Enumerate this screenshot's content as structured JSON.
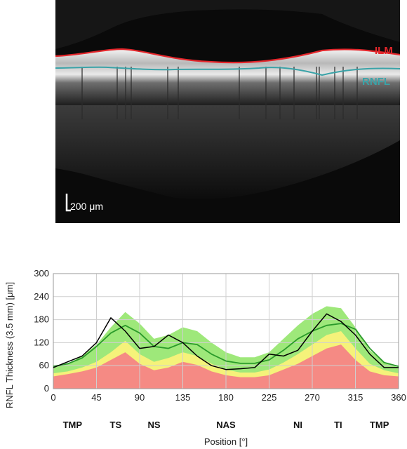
{
  "oct_image": {
    "labels": {
      "ilm": "ILM",
      "rnfl": "RNFL"
    },
    "scale_bar": "200 μm",
    "colors": {
      "ilm": "#e3262b",
      "rnfl": "#3aa3a8"
    }
  },
  "chart_data": {
    "type": "line",
    "xlabel": "Position [°]",
    "ylabel": "RNFL Thickness (3.5 mm) [μm]",
    "xlim": [
      0,
      360
    ],
    "ylim": [
      0,
      300
    ],
    "x_ticks": [
      "0",
      "45",
      "90",
      "135",
      "180",
      "225",
      "270",
      "315",
      "360"
    ],
    "y_ticks": [
      "0",
      "60",
      "120",
      "180",
      "240",
      "300"
    ],
    "sector_labels": [
      {
        "label": "TMP",
        "x": 20
      },
      {
        "label": "TS",
        "x": 65
      },
      {
        "label": "NS",
        "x": 105
      },
      {
        "label": "NAS",
        "x": 180
      },
      {
        "label": "NI",
        "x": 255
      },
      {
        "label": "TI",
        "x": 297
      },
      {
        "label": "TMP",
        "x": 340
      }
    ],
    "grid": true,
    "x": [
      0,
      15,
      30,
      45,
      60,
      75,
      90,
      105,
      120,
      135,
      150,
      165,
      180,
      195,
      210,
      225,
      240,
      255,
      270,
      285,
      300,
      315,
      330,
      345,
      360
    ],
    "bands": [
      {
        "name": "red",
        "color": "#f58a84",
        "values": [
          32,
          38,
          45,
          55,
          75,
          95,
          65,
          48,
          55,
          70,
          62,
          45,
          35,
          30,
          30,
          35,
          50,
          65,
          85,
          105,
          115,
          75,
          45,
          35,
          32
        ]
      },
      {
        "name": "yellow",
        "color": "#f5f27a",
        "values": [
          40,
          45,
          55,
          70,
          95,
          125,
          90,
          70,
          80,
          95,
          85,
          65,
          50,
          42,
          42,
          50,
          68,
          90,
          115,
          140,
          150,
          105,
          65,
          48,
          40
        ]
      },
      {
        "name": "green",
        "color": "#9ee87a",
        "values": [
          55,
          65,
          85,
          115,
          160,
          200,
          170,
          130,
          140,
          160,
          150,
          120,
          95,
          82,
          82,
          95,
          130,
          165,
          195,
          215,
          210,
          160,
          100,
          70,
          55
        ]
      }
    ],
    "series": [
      {
        "name": "",
        "color": "#2a9a2a",
        "values": [
          58,
          65,
          80,
          110,
          145,
          165,
          145,
          110,
          105,
          120,
          115,
          90,
          72,
          66,
          66,
          75,
          100,
          130,
          150,
          165,
          170,
          155,
          105,
          68,
          58
        ]
      },
      {
        "name": "",
        "color": "#000000",
        "values": [
          55,
          70,
          85,
          120,
          185,
          150,
          105,
          110,
          140,
          120,
          85,
          60,
          50,
          52,
          55,
          90,
          85,
          100,
          150,
          195,
          175,
          140,
          90,
          55,
          55
        ]
      }
    ]
  }
}
